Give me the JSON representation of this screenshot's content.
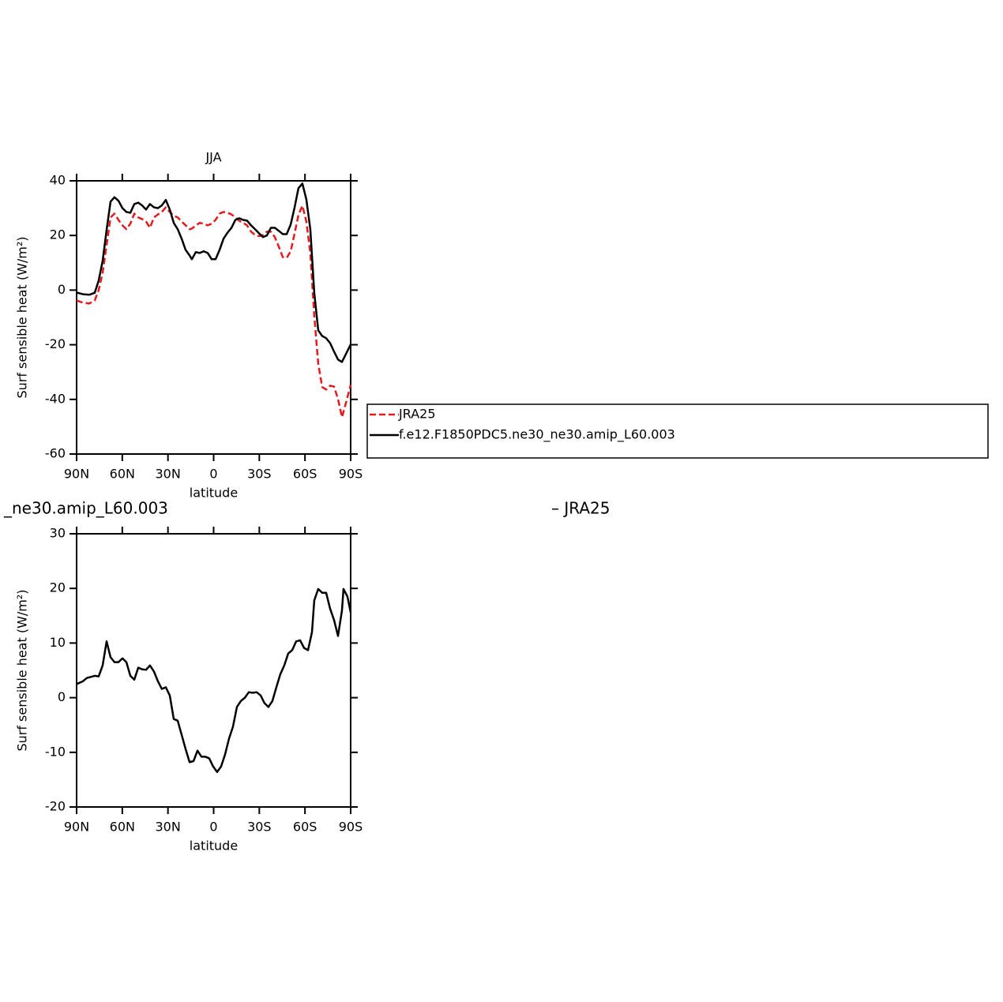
{
  "chart_data": [
    {
      "type": "line",
      "title": "JJA",
      "xlabel": "latitude",
      "ylabel": "Surf sensible heat (W/m²)",
      "xlim": [
        90,
        -90
      ],
      "ylim": [
        -60,
        40
      ],
      "xticks": [
        {
          "value": 90,
          "label": "90N"
        },
        {
          "value": 60,
          "label": "60N"
        },
        {
          "value": 30,
          "label": "30N"
        },
        0,
        {
          "value": -30,
          "label": "30S"
        },
        {
          "value": -60,
          "label": "60S"
        },
        {
          "value": -90,
          "label": "90S"
        }
      ],
      "yticks": [
        -60,
        -40,
        -20,
        0,
        20,
        40
      ],
      "legend": "right",
      "x": [
        90,
        85.9,
        81.7,
        78.1,
        75.5,
        72.9,
        70.3,
        67.7,
        65.1,
        62.5,
        59.9,
        57.3,
        54.7,
        52.1,
        49.5,
        47.0,
        44.4,
        41.8,
        39.2,
        36.6,
        34.0,
        31.4,
        28.8,
        26.2,
        23.6,
        21.0,
        18.4,
        15.8,
        14.3,
        11.7,
        9.1,
        6.5,
        3.9,
        1.3,
        -1.3,
        -3.9,
        -6.5,
        -9.1,
        -11.7,
        -14.3,
        -16.8,
        -19.4,
        -22.0,
        -24.6,
        -27.2,
        -29.8,
        -32.4,
        -35.0,
        -37.6,
        -40.2,
        -42.8,
        -45.4,
        -48.0,
        -50.6,
        -53.2,
        -55.7,
        -58.3,
        -60.9,
        -63.5,
        -66.1,
        -68.7,
        -71.3,
        -73.9,
        -76.5,
        -79.1,
        -81.7,
        -84.3,
        -86.9,
        -90
      ],
      "series": [
        {
          "name": "JRA25",
          "color": "#e41a1c",
          "dashed": true,
          "values": [
            -3.8,
            -4.6,
            -4.9,
            -3.8,
            0,
            6.4,
            16.5,
            26.6,
            28,
            25.7,
            23.7,
            22.3,
            24.3,
            28,
            26.6,
            26,
            25.1,
            22.8,
            26.6,
            27.7,
            28.6,
            30.3,
            28.6,
            27.2,
            26.6,
            25.1,
            23.7,
            22.3,
            22.5,
            23.7,
            24.6,
            24.3,
            23.7,
            24.3,
            25.7,
            28,
            28.6,
            28.3,
            27.7,
            26.6,
            25.4,
            24.6,
            23.7,
            21.4,
            20.2,
            19.7,
            20.2,
            21.4,
            21.4,
            19.4,
            15.9,
            12.1,
            11.8,
            14.2,
            20.8,
            27.5,
            30.9,
            25.1,
            13.6,
            -9.5,
            -26.9,
            -35.5,
            -36.4,
            -35,
            -35.3,
            -39.9,
            -46.5,
            -41.3,
            -34.7
          ]
        },
        {
          "name": "f.e12.F1850PDC5.ne30_ne30.amip_L60.003",
          "color": "#000000",
          "dashed": false,
          "values": [
            -0.9,
            -1.5,
            -1.7,
            -1,
            3.5,
            10.7,
            22,
            32.4,
            34,
            32.7,
            30,
            28.6,
            28.3,
            31.5,
            32,
            31,
            29.5,
            31.5,
            30.3,
            30,
            31,
            33,
            29.5,
            24.6,
            22.3,
            18.8,
            14.7,
            12.7,
            11.3,
            13.9,
            13.6,
            14.2,
            13.6,
            11.3,
            11.3,
            14.7,
            18.8,
            21,
            22.8,
            25.7,
            26.3,
            25.7,
            25.4,
            23.7,
            22.3,
            20.8,
            19.4,
            20,
            22.8,
            22.8,
            21.7,
            20.5,
            20.5,
            24,
            30.3,
            37.3,
            39,
            33.2,
            22.3,
            -1,
            -14.7,
            -16.8,
            -17.6,
            -19.4,
            -22.5,
            -25.4,
            -26.3,
            -23.4,
            -19.9
          ]
        }
      ]
    },
    {
      "type": "line",
      "left_title": "_ne30.amip_L60.003",
      "right_title": "– JRA25",
      "xlabel": "latitude",
      "ylabel": "Surf sensible heat (W/m²)",
      "xlim": [
        90,
        -90
      ],
      "ylim": [
        -20,
        30
      ],
      "xticks": [
        {
          "value": 90,
          "label": "90N"
        },
        {
          "value": 60,
          "label": "60N"
        },
        {
          "value": 30,
          "label": "30N"
        },
        0,
        {
          "value": -30,
          "label": "30S"
        },
        {
          "value": -60,
          "label": "60S"
        },
        {
          "value": -90,
          "label": "90S"
        }
      ],
      "yticks": [
        -20,
        -10,
        0,
        10,
        20,
        30
      ],
      "x": [
        90,
        85.9,
        83.3,
        80.7,
        78.1,
        75.5,
        72.9,
        70.3,
        67.7,
        65.1,
        62.5,
        59.9,
        57.3,
        54.7,
        52.1,
        49.5,
        47.0,
        44.4,
        41.8,
        39.2,
        36.6,
        34.0,
        31.4,
        28.8,
        26.2,
        23.6,
        21.0,
        18.4,
        15.8,
        13.2,
        10.6,
        8.0,
        5.5,
        2.9,
        0.3,
        -2.3,
        -4.9,
        -7.5,
        -10.1,
        -12.7,
        -15.3,
        -17.9,
        -20.5,
        -23.1,
        -25.7,
        -28.3,
        -30.9,
        -33.4,
        -36.0,
        -38.6,
        -41.2,
        -43.8,
        -46.4,
        -49.0,
        -51.6,
        -54.2,
        -56.8,
        -59.4,
        -62.0,
        -64.6,
        -66.1,
        -68.7,
        -71.3,
        -73.9,
        -76.5,
        -79.1,
        -81.7,
        -84.3,
        -85.3,
        -87.9,
        -90
      ],
      "series": [
        {
          "color": "#000000",
          "dashed": false,
          "values": [
            2.5,
            3,
            3.6,
            3.8,
            4,
            3.9,
            5.9,
            10.3,
            7.4,
            6.5,
            6.5,
            7.2,
            6.5,
            4,
            3.3,
            5.5,
            5.2,
            5.1,
            5.9,
            4.8,
            3,
            1.6,
            1.9,
            0.4,
            -3.9,
            -4.2,
            -6.8,
            -9.4,
            -11.8,
            -11.6,
            -9.7,
            -10.8,
            -10.8,
            -11.1,
            -12.6,
            -13.6,
            -12.6,
            -10.4,
            -7.5,
            -5.3,
            -1.7,
            -0.6,
            0,
            1,
            0.9,
            1,
            0.4,
            -1,
            -1.7,
            -0.6,
            1.9,
            4.3,
            5.9,
            8.1,
            8.7,
            10.3,
            10.5,
            9.1,
            8.7,
            12,
            17.8,
            19.9,
            19.2,
            19.2,
            16.3,
            14.2,
            11.3,
            16,
            19.9,
            18.5,
            15.6
          ]
        }
      ]
    }
  ]
}
